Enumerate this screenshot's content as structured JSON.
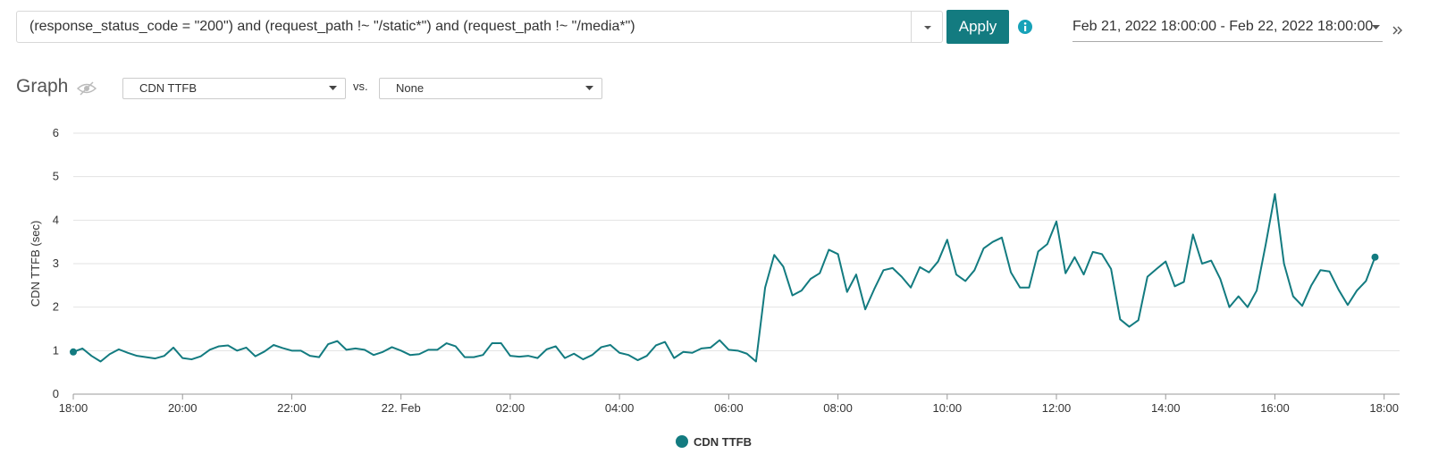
{
  "toolbar": {
    "query": "(response_status_code = \"200\") and (request_path !~ \"/static*\") and (request_path !~ \"/media*\")",
    "apply": "Apply",
    "date_range": "Feb 21, 2022 18:00:00 - Feb 22, 2022 18:00:00"
  },
  "graph_header": {
    "title": "Graph",
    "metric": "CDN TTFB",
    "vs": "vs.",
    "compare": "None"
  },
  "chart_data": {
    "type": "line",
    "y_label": "CDN TTFB (sec)",
    "grid": true,
    "xlim": [
      0,
      1457
    ],
    "ylim": [
      0,
      6
    ],
    "yticks": [
      0,
      1,
      2,
      3,
      4,
      5,
      6
    ],
    "xticks": [
      {
        "value": 0,
        "label": "18:00"
      },
      {
        "value": 120,
        "label": "20:00"
      },
      {
        "value": 240,
        "label": "22:00"
      },
      {
        "value": 360,
        "label": "22. Feb"
      },
      {
        "value": 480,
        "label": "02:00"
      },
      {
        "value": 600,
        "label": "04:00"
      },
      {
        "value": 720,
        "label": "06:00"
      },
      {
        "value": 840,
        "label": "08:00"
      },
      {
        "value": 960,
        "label": "10:00"
      },
      {
        "value": 1080,
        "label": "12:00"
      },
      {
        "value": 1200,
        "label": "14:00"
      },
      {
        "value": 1320,
        "label": "16:00"
      },
      {
        "value": 1440,
        "label": "18:00"
      }
    ],
    "x": [
      0,
      10,
      20,
      30,
      40,
      50,
      60,
      70,
      80,
      90,
      100,
      110,
      120,
      130,
      140,
      150,
      160,
      170,
      180,
      190,
      200,
      210,
      220,
      230,
      240,
      250,
      260,
      270,
      280,
      290,
      300,
      310,
      320,
      330,
      340,
      350,
      360,
      370,
      380,
      390,
      400,
      410,
      420,
      430,
      440,
      450,
      460,
      470,
      480,
      490,
      500,
      510,
      520,
      530,
      540,
      550,
      560,
      570,
      580,
      590,
      600,
      610,
      620,
      630,
      640,
      650,
      660,
      670,
      680,
      690,
      700,
      710,
      720,
      730,
      740,
      750,
      760,
      770,
      780,
      790,
      800,
      810,
      820,
      830,
      840,
      850,
      860,
      870,
      880,
      890,
      900,
      910,
      920,
      930,
      940,
      950,
      960,
      970,
      980,
      990,
      1000,
      1010,
      1020,
      1030,
      1040,
      1050,
      1060,
      1070,
      1080,
      1090,
      1100,
      1110,
      1120,
      1130,
      1140,
      1150,
      1160,
      1170,
      1180,
      1190,
      1200,
      1210,
      1220,
      1230,
      1240,
      1250,
      1260,
      1270,
      1280,
      1290,
      1300,
      1310,
      1320,
      1330,
      1340,
      1350,
      1360,
      1370,
      1380,
      1390,
      1400,
      1410,
      1420,
      1430
    ],
    "series": [
      {
        "name": "CDN TTFB",
        "color": "#137b80",
        "values": [
          0.97,
          1.05,
          0.88,
          0.75,
          0.92,
          1.03,
          0.95,
          0.88,
          0.85,
          0.82,
          0.88,
          1.07,
          0.83,
          0.8,
          0.87,
          1.02,
          1.1,
          1.12,
          1.0,
          1.07,
          0.87,
          0.98,
          1.13,
          1.06,
          1.0,
          1.0,
          0.88,
          0.85,
          1.15,
          1.22,
          1.02,
          1.05,
          1.02,
          0.9,
          0.97,
          1.08,
          1.0,
          0.9,
          0.92,
          1.02,
          1.02,
          1.17,
          1.1,
          0.85,
          0.85,
          0.9,
          1.17,
          1.17,
          0.88,
          0.86,
          0.88,
          0.83,
          1.03,
          1.1,
          0.83,
          0.93,
          0.8,
          0.9,
          1.08,
          1.13,
          0.95,
          0.9,
          0.78,
          0.88,
          1.12,
          1.2,
          0.83,
          0.97,
          0.95,
          1.05,
          1.07,
          1.24,
          1.02,
          1.0,
          0.93,
          0.75,
          2.45,
          3.2,
          2.93,
          2.27,
          2.38,
          2.65,
          2.78,
          3.32,
          3.22,
          2.35,
          2.75,
          1.95,
          2.42,
          2.85,
          2.9,
          2.7,
          2.45,
          2.92,
          2.8,
          3.05,
          3.55,
          2.75,
          2.6,
          2.85,
          3.35,
          3.5,
          3.6,
          2.8,
          2.45,
          2.45,
          3.28,
          3.45,
          3.97,
          2.78,
          3.15,
          2.75,
          3.27,
          3.22,
          2.88,
          1.72,
          1.55,
          1.7,
          2.7,
          2.88,
          3.05,
          2.48,
          2.58,
          3.67,
          3.0,
          3.07,
          2.65,
          2.0,
          2.25,
          2.0,
          2.38,
          3.45,
          4.6,
          3.0,
          2.25,
          2.03,
          2.5,
          2.85,
          2.82,
          2.4,
          2.05,
          2.38,
          2.6,
          3.15
        ]
      }
    ]
  }
}
